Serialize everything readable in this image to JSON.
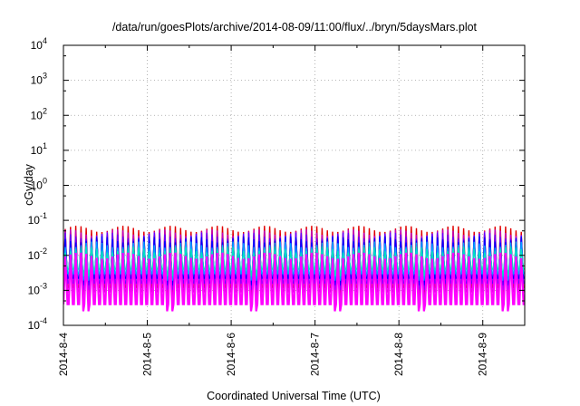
{
  "chart_data": {
    "type": "line",
    "title": "/data/run/goesPlots/archive/2014-08-09/11:00/flux/../bryn/5daysMars.plot",
    "xlabel": "Coordinated Universal Time (UTC)",
    "ylabel": "cGy/day",
    "y_scale": "log",
    "ylim": [
      0.0001,
      10000
    ],
    "y_ticks": [
      {
        "value": 0.0001,
        "base": "10",
        "exp": "-4"
      },
      {
        "value": 0.001,
        "base": "10",
        "exp": "-3"
      },
      {
        "value": 0.01,
        "base": "10",
        "exp": "-2"
      },
      {
        "value": 0.1,
        "base": "10",
        "exp": "-1"
      },
      {
        "value": 1,
        "base": "10",
        "exp": "0"
      },
      {
        "value": 10,
        "base": "10",
        "exp": "1"
      },
      {
        "value": 100,
        "base": "10",
        "exp": "2"
      },
      {
        "value": 1000,
        "base": "10",
        "exp": "3"
      },
      {
        "value": 10000,
        "base": "10",
        "exp": "4"
      }
    ],
    "xlim": [
      "2014-08-04 00:00",
      "2014-08-09 12:00"
    ],
    "x_ticks": [
      "2014-8-4",
      "2014-8-5",
      "2014-8-6",
      "2014-8-7",
      "2014-8-8",
      "2014-8-9"
    ],
    "grid": true,
    "pattern": {
      "description_values": "periodic sawtooth dose rate, about 90-minute period, peak ~0.02-0.07 falling to ~0.001-0.0003",
      "period_hours": 1.5,
      "series": [
        {
          "color": "#e00000",
          "peak": 0.07,
          "trough": 0.0012
        },
        {
          "color": "#c000c0",
          "peak": 0.055,
          "trough": 0.0009
        },
        {
          "color": "#6000ff",
          "peak": 0.045,
          "trough": 0.0016
        },
        {
          "color": "#0000ff",
          "peak": 0.035,
          "trough": 0.0022
        },
        {
          "color": "#00a0ff",
          "peak": 0.025,
          "trough": 0.003
        },
        {
          "color": "#00e0c0",
          "peak": 0.018,
          "trough": 0.004
        },
        {
          "color": "#ff00ff",
          "peak": 0.012,
          "trough": 0.0004
        }
      ]
    }
  }
}
